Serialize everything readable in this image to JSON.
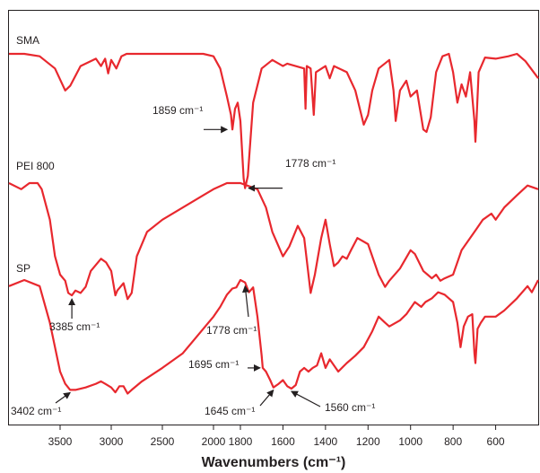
{
  "chart_data": {
    "type": "line",
    "xlabel": "Wavenumbers (cm⁻¹)",
    "ylabel": "",
    "x_reversed": true,
    "xlim": [
      4000,
      400
    ],
    "x_ticks": [
      3500,
      3000,
      2500,
      2000,
      1800,
      1600,
      1400,
      1200,
      1000,
      800,
      600
    ],
    "x_tick_labels": [
      "3500",
      "3000",
      "2500",
      "2000",
      "1800",
      "1600",
      "1400",
      "1200",
      "1000",
      "800",
      "600"
    ],
    "grid": false,
    "line_color": "#e8282e",
    "series": [
      {
        "name": "SMA",
        "points": [
          [
            4000,
            0.0
          ],
          [
            3850,
            0.0
          ],
          [
            3700,
            0.02
          ],
          [
            3550,
            0.12
          ],
          [
            3450,
            0.3
          ],
          [
            3400,
            0.26
          ],
          [
            3300,
            0.1
          ],
          [
            3150,
            0.04
          ],
          [
            3100,
            0.1
          ],
          [
            3060,
            0.04
          ],
          [
            3030,
            0.16
          ],
          [
            3000,
            0.05
          ],
          [
            2950,
            0.12
          ],
          [
            2900,
            0.02
          ],
          [
            2850,
            0.0
          ],
          [
            2400,
            0.0
          ],
          [
            2100,
            0.0
          ],
          [
            2000,
            0.02
          ],
          [
            1950,
            0.12
          ],
          [
            1900,
            0.35
          ],
          [
            1870,
            0.5
          ],
          [
            1859,
            0.62
          ],
          [
            1840,
            0.45
          ],
          [
            1820,
            0.4
          ],
          [
            1800,
            0.55
          ],
          [
            1785,
            1.02
          ],
          [
            1778,
            1.1
          ],
          [
            1765,
            1.0
          ],
          [
            1740,
            0.4
          ],
          [
            1700,
            0.12
          ],
          [
            1650,
            0.05
          ],
          [
            1600,
            0.1
          ],
          [
            1580,
            0.08
          ],
          [
            1500,
            0.12
          ],
          [
            1494,
            0.45
          ],
          [
            1488,
            0.1
          ],
          [
            1470,
            0.12
          ],
          [
            1455,
            0.5
          ],
          [
            1445,
            0.15
          ],
          [
            1400,
            0.1
          ],
          [
            1380,
            0.2
          ],
          [
            1360,
            0.1
          ],
          [
            1300,
            0.15
          ],
          [
            1260,
            0.3
          ],
          [
            1220,
            0.58
          ],
          [
            1200,
            0.5
          ],
          [
            1180,
            0.3
          ],
          [
            1150,
            0.12
          ],
          [
            1100,
            0.05
          ],
          [
            1080,
            0.3
          ],
          [
            1070,
            0.55
          ],
          [
            1050,
            0.3
          ],
          [
            1020,
            0.22
          ],
          [
            1000,
            0.35
          ],
          [
            970,
            0.3
          ],
          [
            940,
            0.62
          ],
          [
            925,
            0.64
          ],
          [
            905,
            0.52
          ],
          [
            880,
            0.15
          ],
          [
            850,
            0.02
          ],
          [
            820,
            0.0
          ],
          [
            800,
            0.15
          ],
          [
            780,
            0.4
          ],
          [
            760,
            0.25
          ],
          [
            740,
            0.35
          ],
          [
            720,
            0.15
          ],
          [
            700,
            0.55
          ],
          [
            695,
            0.72
          ],
          [
            690,
            0.55
          ],
          [
            680,
            0.15
          ],
          [
            650,
            0.03
          ],
          [
            600,
            0.04
          ],
          [
            540,
            0.02
          ],
          [
            500,
            0.0
          ],
          [
            460,
            0.06
          ],
          [
            400,
            0.2
          ]
        ]
      },
      {
        "name": "PEI 800",
        "points": [
          [
            4000,
            0.0
          ],
          [
            3880,
            0.05
          ],
          [
            3800,
            0.0
          ],
          [
            3720,
            0.0
          ],
          [
            3680,
            0.05
          ],
          [
            3600,
            0.3
          ],
          [
            3550,
            0.6
          ],
          [
            3500,
            0.75
          ],
          [
            3450,
            0.8
          ],
          [
            3420,
            0.9
          ],
          [
            3385,
            0.92
          ],
          [
            3350,
            0.88
          ],
          [
            3300,
            0.9
          ],
          [
            3250,
            0.85
          ],
          [
            3200,
            0.72
          ],
          [
            3100,
            0.62
          ],
          [
            3050,
            0.65
          ],
          [
            3000,
            0.72
          ],
          [
            2960,
            0.92
          ],
          [
            2940,
            0.88
          ],
          [
            2880,
            0.82
          ],
          [
            2840,
            0.95
          ],
          [
            2800,
            0.9
          ],
          [
            2750,
            0.6
          ],
          [
            2650,
            0.4
          ],
          [
            2500,
            0.3
          ],
          [
            2300,
            0.2
          ],
          [
            2100,
            0.1
          ],
          [
            2000,
            0.05
          ],
          [
            1900,
            0.0
          ],
          [
            1800,
            0.0
          ],
          [
            1720,
            0.05
          ],
          [
            1680,
            0.2
          ],
          [
            1650,
            0.4
          ],
          [
            1600,
            0.6
          ],
          [
            1570,
            0.52
          ],
          [
            1530,
            0.35
          ],
          [
            1500,
            0.45
          ],
          [
            1470,
            0.9
          ],
          [
            1450,
            0.75
          ],
          [
            1420,
            0.45
          ],
          [
            1400,
            0.3
          ],
          [
            1380,
            0.5
          ],
          [
            1360,
            0.68
          ],
          [
            1340,
            0.65
          ],
          [
            1320,
            0.6
          ],
          [
            1300,
            0.62
          ],
          [
            1280,
            0.55
          ],
          [
            1250,
            0.45
          ],
          [
            1200,
            0.5
          ],
          [
            1150,
            0.75
          ],
          [
            1120,
            0.85
          ],
          [
            1100,
            0.8
          ],
          [
            1050,
            0.7
          ],
          [
            1000,
            0.55
          ],
          [
            980,
            0.58
          ],
          [
            940,
            0.72
          ],
          [
            920,
            0.75
          ],
          [
            900,
            0.78
          ],
          [
            880,
            0.75
          ],
          [
            860,
            0.8
          ],
          [
            840,
            0.78
          ],
          [
            800,
            0.75
          ],
          [
            760,
            0.55
          ],
          [
            700,
            0.4
          ],
          [
            660,
            0.3
          ],
          [
            620,
            0.25
          ],
          [
            600,
            0.3
          ],
          [
            560,
            0.2
          ],
          [
            500,
            0.1
          ],
          [
            450,
            0.02
          ],
          [
            400,
            0.05
          ]
        ]
      },
      {
        "name": "SP",
        "points": [
          [
            4000,
            0.05
          ],
          [
            3850,
            0.0
          ],
          [
            3700,
            0.05
          ],
          [
            3600,
            0.35
          ],
          [
            3500,
            0.75
          ],
          [
            3450,
            0.85
          ],
          [
            3402,
            0.9
          ],
          [
            3350,
            0.9
          ],
          [
            3250,
            0.88
          ],
          [
            3150,
            0.85
          ],
          [
            3100,
            0.83
          ],
          [
            3060,
            0.85
          ],
          [
            3000,
            0.88
          ],
          [
            2960,
            0.92
          ],
          [
            2920,
            0.87
          ],
          [
            2880,
            0.87
          ],
          [
            2840,
            0.93
          ],
          [
            2800,
            0.9
          ],
          [
            2700,
            0.83
          ],
          [
            2500,
            0.72
          ],
          [
            2300,
            0.6
          ],
          [
            2150,
            0.45
          ],
          [
            2050,
            0.35
          ],
          [
            2000,
            0.3
          ],
          [
            1950,
            0.22
          ],
          [
            1900,
            0.12
          ],
          [
            1860,
            0.07
          ],
          [
            1830,
            0.06
          ],
          [
            1800,
            0.0
          ],
          [
            1778,
            0.02
          ],
          [
            1760,
            0.1
          ],
          [
            1740,
            0.06
          ],
          [
            1720,
            0.3
          ],
          [
            1700,
            0.62
          ],
          [
            1695,
            0.72
          ],
          [
            1680,
            0.75
          ],
          [
            1660,
            0.82
          ],
          [
            1645,
            0.88
          ],
          [
            1620,
            0.85
          ],
          [
            1600,
            0.82
          ],
          [
            1580,
            0.87
          ],
          [
            1560,
            0.89
          ],
          [
            1540,
            0.86
          ],
          [
            1520,
            0.75
          ],
          [
            1500,
            0.72
          ],
          [
            1480,
            0.75
          ],
          [
            1460,
            0.72
          ],
          [
            1440,
            0.7
          ],
          [
            1420,
            0.6
          ],
          [
            1400,
            0.72
          ],
          [
            1380,
            0.65
          ],
          [
            1340,
            0.75
          ],
          [
            1300,
            0.68
          ],
          [
            1260,
            0.62
          ],
          [
            1220,
            0.55
          ],
          [
            1180,
            0.42
          ],
          [
            1150,
            0.3
          ],
          [
            1120,
            0.35
          ],
          [
            1100,
            0.38
          ],
          [
            1050,
            0.33
          ],
          [
            1020,
            0.28
          ],
          [
            980,
            0.18
          ],
          [
            950,
            0.22
          ],
          [
            930,
            0.18
          ],
          [
            900,
            0.15
          ],
          [
            870,
            0.1
          ],
          [
            840,
            0.12
          ],
          [
            800,
            0.18
          ],
          [
            780,
            0.35
          ],
          [
            765,
            0.55
          ],
          [
            750,
            0.38
          ],
          [
            730,
            0.3
          ],
          [
            710,
            0.28
          ],
          [
            700,
            0.6
          ],
          [
            695,
            0.68
          ],
          [
            685,
            0.4
          ],
          [
            670,
            0.35
          ],
          [
            650,
            0.3
          ],
          [
            600,
            0.3
          ],
          [
            560,
            0.25
          ],
          [
            500,
            0.15
          ],
          [
            450,
            0.05
          ],
          [
            430,
            0.1
          ],
          [
            400,
            0.0
          ]
        ]
      }
    ],
    "annotations": [
      {
        "text": "1859 cm⁻¹",
        "series": 0,
        "x": 1859
      },
      {
        "text": "1778 cm⁻¹",
        "series": 0,
        "x": 1778
      },
      {
        "text": "3385 cm⁻¹",
        "series": 1,
        "x": 3385
      },
      {
        "text": "1778 cm⁻¹",
        "series": 2,
        "x": 1778
      },
      {
        "text": "1695 cm⁻¹",
        "series": 2,
        "x": 1695
      },
      {
        "text": "3402 cm⁻¹",
        "series": 2,
        "x": 3402
      },
      {
        "text": "1645 cm⁻¹",
        "series": 2,
        "x": 1645
      },
      {
        "text": "1560 cm⁻¹",
        "series": 2,
        "x": 1560
      }
    ]
  }
}
